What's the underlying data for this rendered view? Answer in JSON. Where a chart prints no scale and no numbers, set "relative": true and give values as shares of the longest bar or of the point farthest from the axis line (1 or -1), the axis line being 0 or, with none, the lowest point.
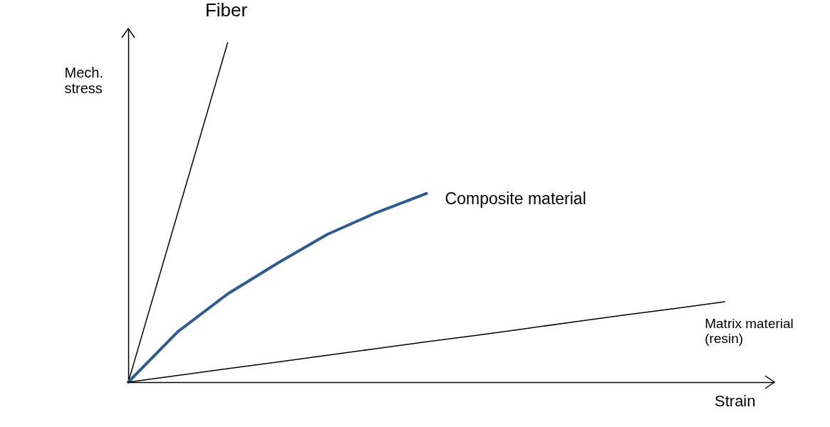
{
  "chart_data": {
    "type": "line",
    "relative": true,
    "xlabel": "Strain",
    "ylabel": "Mech.\nstress",
    "grid": false,
    "tick_labels": false,
    "marker": "none",
    "line_style": "solid",
    "categories": [
      null,
      null,
      null,
      null,
      null,
      null,
      null,
      null,
      null,
      null,
      null,
      null,
      null,
      null
    ],
    "series": [
      {
        "name": "Fiber",
        "color": "#000000",
        "values": [
          0,
          0.5,
          1,
          null,
          null,
          null,
          null,
          null,
          null,
          null,
          null,
          null,
          null,
          null
        ]
      },
      {
        "name": "Composite material",
        "color": "#2f5b8f",
        "values": [
          0,
          0.149,
          0.26,
          0.35,
          0.435,
          0.5,
          0.556,
          null,
          null,
          null,
          null,
          null,
          null,
          null
        ]
      },
      {
        "name": "Matrix material\n(resin)",
        "color": "#000000",
        "values": [
          0,
          0.02,
          0.04,
          0.059,
          0.079,
          0.099,
          0.119,
          0.138,
          0.158,
          0.178,
          0.198,
          0.217,
          0.237,
          null
        ]
      }
    ]
  }
}
